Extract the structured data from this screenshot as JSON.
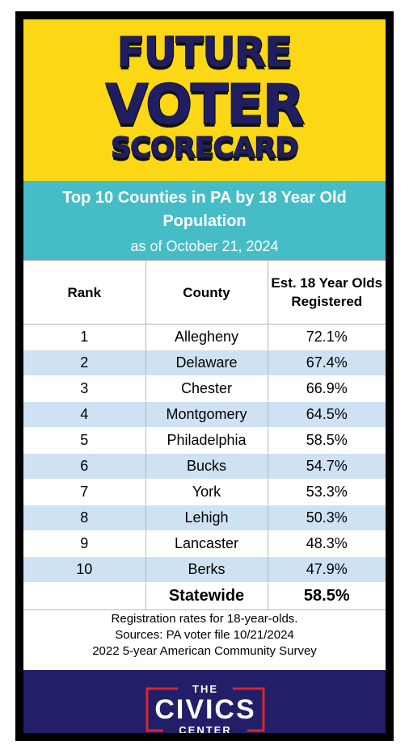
{
  "headline": {
    "line1": "FUTURE",
    "line2": "VOTER",
    "line3": "SCORECARD"
  },
  "subtitle": "Top 10 Counties in PA by 18 Year Old Population",
  "date_note": "as of October 21, 2024",
  "table": {
    "headers": {
      "rank": "Rank",
      "county": "County",
      "rate": "Est. 18 Year Olds Registered"
    },
    "rows": [
      {
        "rank": "1",
        "county": "Allegheny",
        "rate": "72.1%"
      },
      {
        "rank": "2",
        "county": "Delaware",
        "rate": "67.4%"
      },
      {
        "rank": "3",
        "county": "Chester",
        "rate": "66.9%"
      },
      {
        "rank": "4",
        "county": "Montgomery",
        "rate": "64.5%"
      },
      {
        "rank": "5",
        "county": "Philadelphia",
        "rate": "58.5%"
      },
      {
        "rank": "6",
        "county": "Bucks",
        "rate": "54.7%"
      },
      {
        "rank": "7",
        "county": "York",
        "rate": "53.3%"
      },
      {
        "rank": "8",
        "county": "Lehigh",
        "rate": "50.3%"
      },
      {
        "rank": "9",
        "county": "Lancaster",
        "rate": "48.3%"
      },
      {
        "rank": "10",
        "county": "Berks",
        "rate": "47.9%"
      }
    ],
    "statewide": {
      "label": "Statewide",
      "rate": "58.5%"
    }
  },
  "notes": [
    "Registration rates for 18-year-olds.",
    "Sources: PA voter file 10/21/2024",
    "2022 5-year American Community Survey"
  ],
  "logo": {
    "top": "THE",
    "main": "CIVICS",
    "bottom": "CENTER"
  },
  "colors": {
    "headline_bg": "#fcd716",
    "headline_text": "#1f1e63",
    "subhead_bg": "#46bdc6",
    "row_stripe": "#cfe2f3",
    "footer_bg": "#221f68",
    "logo_accent": "#d9262e"
  }
}
